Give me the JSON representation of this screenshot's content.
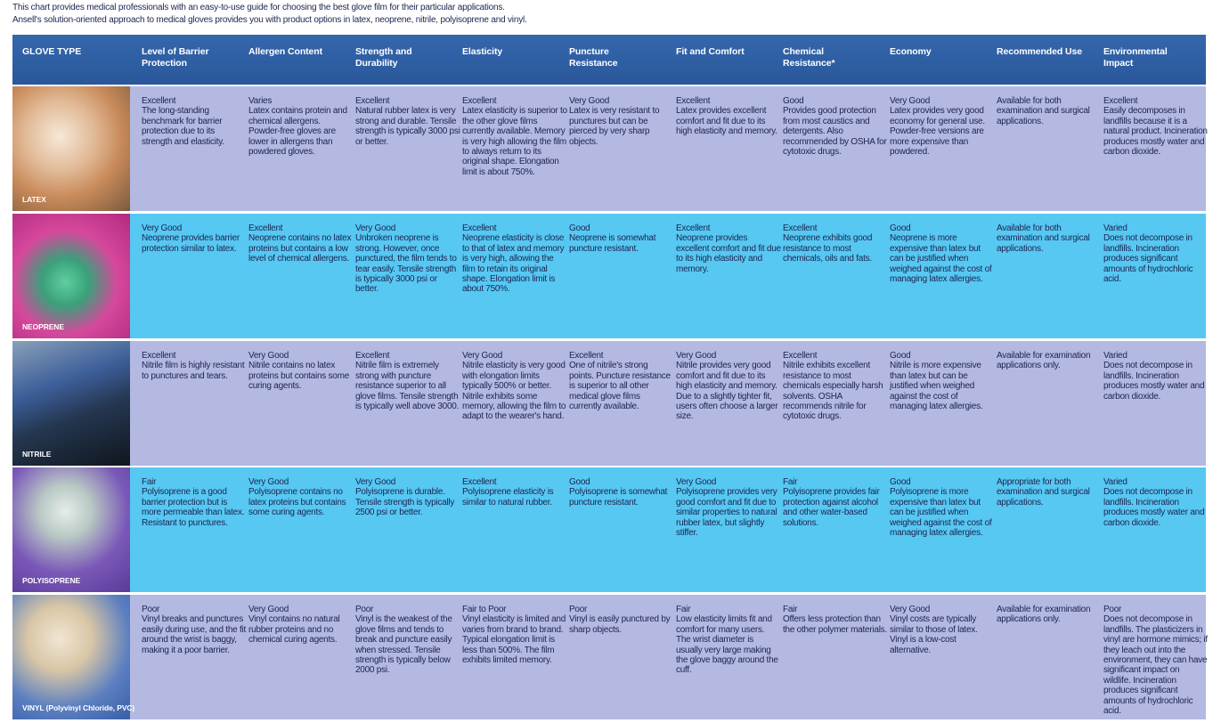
{
  "intro": [
    "This chart provides medical professionals with an easy-to-use guide for choosing the best glove film for their particular applications.",
    "Ansell's solution-oriented approach to medical gloves provides you with product options in latex, neoprene, nitrile, polyisoprene and vinyl."
  ],
  "table": {
    "headers": [
      "GLOVE TYPE",
      "Level of Barrier Protection",
      "Allergen Content",
      "Strength and Durability",
      "Elasticity",
      "Puncture Resistance",
      "Fit and Comfort",
      "Chemical Resistance*",
      "Economy",
      "Recommended Use",
      "Environmental Impact"
    ],
    "rows": [
      {
        "glove": "LATEX",
        "cells": [
          {
            "rating": "Excellent",
            "text": "The long-standing benchmark for barrier protection due to its strength and elasticity."
          },
          {
            "rating": "Varies",
            "text": "Latex contains protein and chemical allergens. Powder-free gloves are lower in allergens than powdered gloves."
          },
          {
            "rating": "Excellent",
            "text": "Natural rubber latex is very strong and durable. Tensile strength is typically 3000 psi or better."
          },
          {
            "rating": "Excellent",
            "text": "Latex elasticity is superior to the other glove films currently available. Memory is very high allowing the film to always return to its original shape. Elongation limit is about 750%."
          },
          {
            "rating": "Very Good",
            "text": "Latex is very resistant to punctures but can be pierced by very sharp objects."
          },
          {
            "rating": "Excellent",
            "text": "Latex provides excellent comfort and fit due to its high elasticity and memory."
          },
          {
            "rating": "Good",
            "text": "Provides good protection from most caustics and detergents. Also recommended by OSHA for cytotoxic drugs."
          },
          {
            "rating": "Very Good",
            "text": "Latex provides very good economy for general use. Powder-free versions are more expensive than powdered."
          },
          {
            "text": "Available for both examination and surgical applications."
          },
          {
            "rating": "Excellent",
            "text": "Easily decomposes in landfills because it is a natural product. Incineration produces mostly water and carbon dioxide."
          }
        ]
      },
      {
        "glove": "NEOPRENE",
        "cells": [
          {
            "rating": "Very Good",
            "text": "Neoprene provides barrier protection similar to latex."
          },
          {
            "rating": "Excellent",
            "text": "Neoprene contains no latex proteins but contains a low level of chemical allergens."
          },
          {
            "rating": "Very Good",
            "text": "Unbroken neoprene is strong. However, once punctured, the film tends to tear easily. Tensile strength is typically 3000 psi or better."
          },
          {
            "rating": "Excellent",
            "text": "Neoprene elasticity is close to that of latex and memory is very high, allowing the film to retain its original shape. Elongation limit is about 750%."
          },
          {
            "rating": "Good",
            "text": "Neoprene is somewhat puncture resistant."
          },
          {
            "rating": "Excellent",
            "text": "Neoprene provides excellent comfort and fit due to its high elasticity and memory."
          },
          {
            "rating": "Excellent",
            "text": "Neoprene exhibits good resistance to most chemicals, oils and fats."
          },
          {
            "rating": "Good",
            "text": "Neoprene is more expensive than latex but can be justified when weighed against the cost of managing latex allergies."
          },
          {
            "text": "Available for both examination and surgical applications."
          },
          {
            "rating": "Varied",
            "text": "Does not decompose in landfills. Incineration produces significant amounts of hydrochloric acid."
          }
        ]
      },
      {
        "glove": "NITRILE",
        "cells": [
          {
            "rating": "Excellent",
            "text": "Nitrile film is highly resistant to punctures and tears."
          },
          {
            "rating": "Very Good",
            "text": "Nitrile contains no latex proteins but contains some curing agents."
          },
          {
            "rating": "Excellent",
            "text": "Nitrile film is extremely strong with puncture resistance superior to all glove films. Tensile strength is typically well above 3000."
          },
          {
            "rating": "Very Good",
            "text": "Nitrile elasticity is very good with elongation limits typically 500% or better. Nitrile exhibits some memory, allowing the film to adapt to the wearer's hand."
          },
          {
            "rating": "Excellent",
            "text": "One of nitrile's strong points. Puncture resistance is superior to all other medical glove films currently available."
          },
          {
            "rating": "Very Good",
            "text": "Nitrile provides very good comfort and fit due to its high elasticity and memory. Due to a slightly tighter fit, users often choose a larger size."
          },
          {
            "rating": "Excellent",
            "text": "Nitrile exhibits excellent resistance to most chemicals especially harsh solvents. OSHA recommends nitrile for cytotoxic drugs."
          },
          {
            "rating": "Good",
            "text": "Nitrile is more expensive than latex but can be justified when weighed against the cost of managing latex allergies."
          },
          {
            "text": "Available for examination applications only."
          },
          {
            "rating": "Varied",
            "text": "Does not decompose in landfills. Incineration produces mostly water and carbon dioxide."
          }
        ]
      },
      {
        "glove": "POLYISOPRENE",
        "cells": [
          {
            "rating": "Fair",
            "text": "Polyisoprene is a good barrier protection but is more permeable than latex. Resistant to punctures."
          },
          {
            "rating": "Very Good",
            "text": "Polyisoprene contains no latex proteins but contains some curing agents."
          },
          {
            "rating": "Very Good",
            "text": "Polyisoprene is durable. Tensile strength is typically 2500 psi or better."
          },
          {
            "rating": "Excellent",
            "text": "Polyisoprene elasticity is similar to natural rubber."
          },
          {
            "rating": "Good",
            "text": "Polyisoprene is somewhat puncture resistant."
          },
          {
            "rating": "Very Good",
            "text": "Polyisoprene provides very good comfort and fit due to similar properties to natural rubber latex, but slightly stiffer."
          },
          {
            "rating": "Fair",
            "text": "Polyisoprene provides fair protection against alcohol and other water-based solutions."
          },
          {
            "rating": "Good",
            "text": "Polyisoprene is more expensive than latex but can be justified when weighed against the cost of managing latex allergies."
          },
          {
            "text": "Appropriate for both examination and surgical applications."
          },
          {
            "rating": "Varied",
            "text": "Does not decompose in landfills. Incineration produces mostly water and carbon dioxide."
          }
        ]
      },
      {
        "glove": "VINYL (Polyvinyl Chloride, PVC)",
        "cells": [
          {
            "rating": "Poor",
            "text": "Vinyl breaks and punctures easily during use, and the fit around the wrist is baggy, making it a poor barrier."
          },
          {
            "rating": "Very Good",
            "text": "Vinyl contains no natural rubber proteins and no chemical curing agents."
          },
          {
            "rating": "Poor",
            "text": "Vinyl is the weakest of the glove films and tends to break and puncture easily when stressed. Tensile strength is typically below 2000 psi."
          },
          {
            "rating": "Fair to Poor",
            "text": "Vinyl elasticity is limited and varies from brand to brand. Typical elongation limit is less than 500%. The film exhibits limited memory."
          },
          {
            "rating": "Poor",
            "text": "Vinyl is easily punctured by sharp objects."
          },
          {
            "rating": "Fair",
            "text": "Low elasticity limits fit and comfort for many users. The wrist diameter is usually very large making the glove baggy around the cuff."
          },
          {
            "rating": "Fair",
            "text": "Offers less protection than the other polymer materials."
          },
          {
            "rating": "Very Good",
            "text": "Vinyl costs are typically similar to those of latex. Vinyl is a low-cost alternative."
          },
          {
            "text": "Available for examination applications only."
          },
          {
            "rating": "Poor",
            "text": "Does not decompose in landfills. The plasticizers in vinyl are hormone mimics; if they leach out into the environment, they can have significant impact on wildlife. Incineration produces significant amounts of hydrochloric acid."
          }
        ]
      }
    ]
  }
}
